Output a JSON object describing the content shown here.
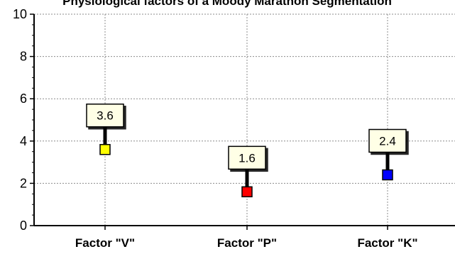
{
  "chart_data": {
    "type": "scatter",
    "title": "Physiological factors of a Moody Marathon Segmentation",
    "xlabel": "",
    "ylabel": "",
    "ylim": [
      0,
      10
    ],
    "yticks": [
      "0",
      "2",
      "4",
      "6",
      "8",
      "10"
    ],
    "grid": true,
    "legend": "none",
    "categories": [
      "Factor \"V\"",
      "Factor \"P\"",
      "Factor \"K\""
    ],
    "values": [
      3.6,
      1.6,
      2.4
    ],
    "data_labels": [
      "3.6",
      "1.6",
      "2.4"
    ],
    "point_colors": [
      "#ffff00",
      "#ff0000",
      "#0000ff"
    ],
    "marker_shape": "square"
  }
}
